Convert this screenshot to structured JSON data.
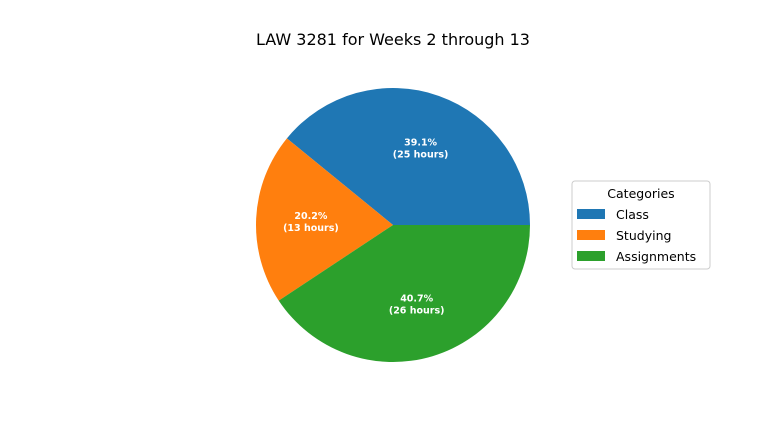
{
  "chart_data": {
    "type": "pie",
    "title": "LAW 3281 for Weeks 2 through 13",
    "slices": [
      {
        "label": "Class",
        "value": 39.1,
        "hours": 25,
        "percent_text": "39.1%",
        "hours_text": "(25 hours)",
        "color": "#1f77b4"
      },
      {
        "label": "Studying",
        "value": 20.2,
        "hours": 13,
        "percent_text": "20.2%",
        "hours_text": "(13 hours)",
        "color": "#ff7f0e"
      },
      {
        "label": "Assignments",
        "value": 40.7,
        "hours": 26,
        "percent_text": "40.7%",
        "hours_text": "(26 hours)",
        "color": "#2ca02c"
      }
    ],
    "start_angle_deg": 0,
    "direction": "counterclockwise",
    "legend": {
      "title": "Categories",
      "placement": "right"
    }
  }
}
